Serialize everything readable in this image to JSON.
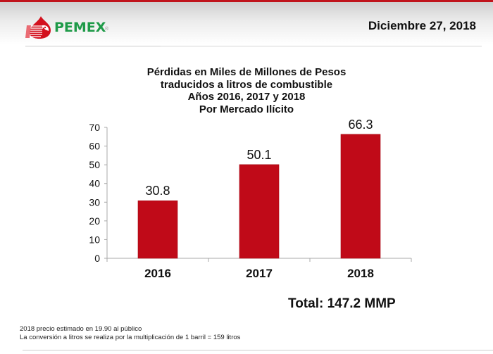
{
  "header": {
    "logo_text": "PEMEX",
    "logo_registered": "®",
    "logo_icon": "eagle-drop-icon",
    "date": "Diciembre 27, 2018"
  },
  "colors": {
    "brand_red": "#c00a18",
    "brand_green": "#1e9a48",
    "top_bar": "#c0141c"
  },
  "chart_data": {
    "type": "bar",
    "title_lines": [
      "Pérdidas en Miles de Millones de Pesos",
      "traducidos a litros de combustible",
      "Años 2016, 2017 y 2018",
      "Por Mercado Ilícito"
    ],
    "categories": [
      "2016",
      "2017",
      "2018"
    ],
    "values": [
      30.8,
      50.1,
      66.3
    ],
    "data_labels": [
      "30.8",
      "50.1",
      "66.3"
    ],
    "xlabel": "",
    "ylabel": "",
    "ylim": [
      0,
      70
    ],
    "yticks": [
      0,
      10,
      20,
      30,
      40,
      50,
      60,
      70
    ],
    "grid": false,
    "legend": "none",
    "bar_color": "#c00a18"
  },
  "summary": {
    "total": "Total: 147.2 MMP"
  },
  "footnotes": [
    "2018 precio estimado en 19.90 al público",
    "La conversión a litros se realiza por la multiplicación de 1 barril = 159 litros"
  ]
}
